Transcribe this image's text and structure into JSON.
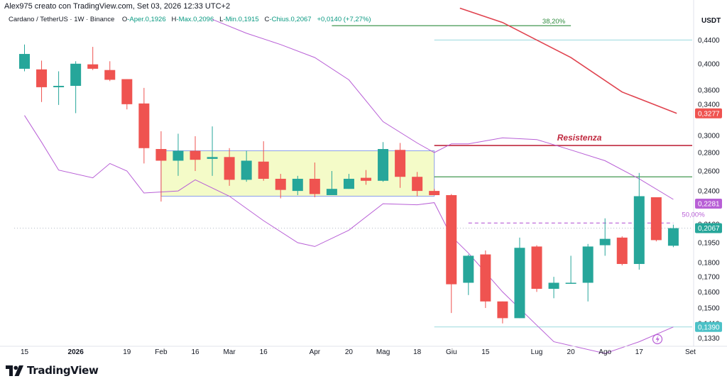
{
  "header": {
    "text": "Alex975 creato con TradingView.com, Set 03, 2026 12:33 UTC+2"
  },
  "symbol_line": {
    "name": "Cardano / TetherUS · 1W · Binance",
    "open_label": "O",
    "open": "-Aper.0,1926",
    "high_label": "H",
    "high": "-Max.0,2096",
    "low_label": "L",
    "low": "-Min.0,1915",
    "close_label": "C",
    "close": "-Chius.0,2067",
    "change": "+0,0140 (+7,27%)"
  },
  "brand": {
    "name": "TradingView",
    "icon": "tradingview-logo-icon"
  },
  "colors": {
    "up": "#26a69a",
    "down": "#ef5350",
    "band": "#b85fd6",
    "resistance": "#c0293f",
    "green_line": "#2e8b3d",
    "cyan_line": "#9ad9dd",
    "downtrend": "#e0434f",
    "range_fill": "#f4fbc8",
    "range_border": "#8ea0e8"
  },
  "chart_data": {
    "type": "candlestick",
    "title": "Cardano / TetherUS · 1W · Binance",
    "currency_label": "USDT",
    "y_scale": "log",
    "ylim": [
      0.129,
      0.505
    ],
    "y_ticks": [
      {
        "value": 0.44,
        "label": "0,4400"
      },
      {
        "value": 0.4,
        "label": "0,4000"
      },
      {
        "value": 0.36,
        "label": "0,3600"
      },
      {
        "value": 0.34,
        "label": "0,3400"
      },
      {
        "value": 0.3,
        "label": "0,3000"
      },
      {
        "value": 0.28,
        "label": "0,2800"
      },
      {
        "value": 0.26,
        "label": "0,2600"
      },
      {
        "value": 0.24,
        "label": "0,2400"
      },
      {
        "value": 0.21,
        "label": "0,2100"
      },
      {
        "value": 0.195,
        "label": "0,1950"
      },
      {
        "value": 0.18,
        "label": "0,1800"
      },
      {
        "value": 0.17,
        "label": "0,1700"
      },
      {
        "value": 0.16,
        "label": "0,1600"
      },
      {
        "value": 0.15,
        "label": "0,1500"
      },
      {
        "value": 0.141,
        "label": "0,1410"
      },
      {
        "value": 0.133,
        "label": "0,1330"
      }
    ],
    "x_ticks": [
      {
        "label": "15",
        "index": 0
      },
      {
        "label": "2026",
        "index": 3,
        "bold": true
      },
      {
        "label": "19",
        "index": 6
      },
      {
        "label": "Feb",
        "index": 8
      },
      {
        "label": "16",
        "index": 10
      },
      {
        "label": "Mar",
        "index": 12
      },
      {
        "label": "16",
        "index": 14
      },
      {
        "label": "Apr",
        "index": 17
      },
      {
        "label": "20",
        "index": 19
      },
      {
        "label": "Mag",
        "index": 21
      },
      {
        "label": "18",
        "index": 23
      },
      {
        "label": "Giu",
        "index": 25
      },
      {
        "label": "15",
        "index": 27
      },
      {
        "label": "Lug",
        "index": 30
      },
      {
        "label": "20",
        "index": 32
      },
      {
        "label": "Ago",
        "index": 34
      },
      {
        "label": "17",
        "index": 36
      },
      {
        "label": "Set",
        "index": 39
      }
    ],
    "candles": [
      {
        "o": 0.392,
        "h": 0.432,
        "l": 0.388,
        "c": 0.416
      },
      {
        "o": 0.391,
        "h": 0.405,
        "l": 0.343,
        "c": 0.364
      },
      {
        "o": 0.364,
        "h": 0.388,
        "l": 0.339,
        "c": 0.366
      },
      {
        "o": 0.366,
        "h": 0.404,
        "l": 0.328,
        "c": 0.4
      },
      {
        "o": 0.399,
        "h": 0.428,
        "l": 0.39,
        "c": 0.392
      },
      {
        "o": 0.39,
        "h": 0.404,
        "l": 0.373,
        "c": 0.375
      },
      {
        "o": 0.376,
        "h": 0.376,
        "l": 0.333,
        "c": 0.34
      },
      {
        "o": 0.341,
        "h": 0.363,
        "l": 0.268,
        "c": 0.285
      },
      {
        "o": 0.284,
        "h": 0.305,
        "l": 0.23,
        "c": 0.271
      },
      {
        "o": 0.271,
        "h": 0.302,
        "l": 0.255,
        "c": 0.282
      },
      {
        "o": 0.282,
        "h": 0.299,
        "l": 0.26,
        "c": 0.272
      },
      {
        "o": 0.273,
        "h": 0.311,
        "l": 0.255,
        "c": 0.275
      },
      {
        "o": 0.275,
        "h": 0.285,
        "l": 0.245,
        "c": 0.251
      },
      {
        "o": 0.251,
        "h": 0.282,
        "l": 0.249,
        "c": 0.271
      },
      {
        "o": 0.27,
        "h": 0.293,
        "l": 0.25,
        "c": 0.252
      },
      {
        "o": 0.252,
        "h": 0.257,
        "l": 0.233,
        "c": 0.241
      },
      {
        "o": 0.24,
        "h": 0.255,
        "l": 0.236,
        "c": 0.252
      },
      {
        "o": 0.252,
        "h": 0.269,
        "l": 0.234,
        "c": 0.237
      },
      {
        "o": 0.236,
        "h": 0.26,
        "l": 0.236,
        "c": 0.242
      },
      {
        "o": 0.242,
        "h": 0.257,
        "l": 0.242,
        "c": 0.252
      },
      {
        "o": 0.253,
        "h": 0.261,
        "l": 0.246,
        "c": 0.25
      },
      {
        "o": 0.25,
        "h": 0.292,
        "l": 0.249,
        "c": 0.284
      },
      {
        "o": 0.283,
        "h": 0.291,
        "l": 0.243,
        "c": 0.254
      },
      {
        "o": 0.254,
        "h": 0.259,
        "l": 0.235,
        "c": 0.24
      },
      {
        "o": 0.24,
        "h": 0.242,
        "l": 0.236,
        "c": 0.236
      },
      {
        "o": 0.236,
        "h": 0.237,
        "l": 0.147,
        "c": 0.165
      },
      {
        "o": 0.166,
        "h": 0.186,
        "l": 0.158,
        "c": 0.185
      },
      {
        "o": 0.186,
        "h": 0.189,
        "l": 0.15,
        "c": 0.154
      },
      {
        "o": 0.154,
        "h": 0.154,
        "l": 0.141,
        "c": 0.144
      },
      {
        "o": 0.144,
        "h": 0.199,
        "l": 0.144,
        "c": 0.191
      },
      {
        "o": 0.192,
        "h": 0.193,
        "l": 0.16,
        "c": 0.162
      },
      {
        "o": 0.162,
        "h": 0.17,
        "l": 0.156,
        "c": 0.166
      },
      {
        "o": 0.166,
        "h": 0.185,
        "l": 0.166,
        "c": 0.166
      },
      {
        "o": 0.166,
        "h": 0.194,
        "l": 0.154,
        "c": 0.192
      },
      {
        "o": 0.193,
        "h": 0.215,
        "l": 0.185,
        "c": 0.198
      },
      {
        "o": 0.199,
        "h": 0.2,
        "l": 0.178,
        "c": 0.179
      },
      {
        "o": 0.179,
        "h": 0.258,
        "l": 0.175,
        "c": 0.235
      },
      {
        "o": 0.234,
        "h": 0.234,
        "l": 0.196,
        "c": 0.197
      },
      {
        "o": 0.1926,
        "h": 0.2096,
        "l": 0.1915,
        "c": 0.2067
      }
    ],
    "bollinger_upper": [
      [
        11,
        0.478
      ],
      [
        13,
        0.452
      ],
      [
        15,
        0.432
      ],
      [
        17,
        0.41
      ],
      [
        19,
        0.375
      ],
      [
        21,
        0.317
      ],
      [
        23,
        0.291
      ],
      [
        24,
        0.28
      ],
      [
        25,
        0.29
      ],
      [
        26,
        0.29
      ],
      [
        28,
        0.297
      ],
      [
        30,
        0.295
      ],
      [
        32,
        0.283
      ],
      [
        34,
        0.271
      ],
      [
        36,
        0.252
      ],
      [
        38,
        0.232
      ]
    ],
    "bollinger_lower": [
      [
        0,
        0.325
      ],
      [
        1,
        0.292
      ],
      [
        2,
        0.261
      ],
      [
        4,
        0.253
      ],
      [
        5,
        0.268
      ],
      [
        6,
        0.26
      ],
      [
        7,
        0.238
      ],
      [
        9,
        0.24
      ],
      [
        10,
        0.251
      ],
      [
        12,
        0.235
      ],
      [
        14,
        0.213
      ],
      [
        16,
        0.195
      ],
      [
        17,
        0.192
      ],
      [
        19,
        0.205
      ],
      [
        21,
        0.228
      ],
      [
        23,
        0.227
      ],
      [
        24,
        0.229
      ],
      [
        25,
        0.2
      ],
      [
        26,
        0.187
      ],
      [
        28,
        0.16
      ],
      [
        30,
        0.14
      ],
      [
        31,
        0.131
      ],
      [
        34,
        0.125
      ],
      [
        36,
        0.131
      ],
      [
        38,
        0.139
      ]
    ],
    "downtrend_line": [
      [
        25.5,
        0.5
      ],
      [
        28,
        0.472
      ],
      [
        30,
        0.44
      ],
      [
        32,
        0.41
      ],
      [
        35,
        0.357
      ],
      [
        38.2,
        0.3277
      ]
    ],
    "range_box": {
      "x0": 8.0,
      "x1": 24.0,
      "y0": 0.235,
      "y1": 0.282
    },
    "levels": [
      {
        "name": "resistance",
        "value": 0.288,
        "x0": 24.0,
        "x1": 40.0,
        "label": "Resistenza"
      },
      {
        "name": "green-level",
        "value": 0.254,
        "x0": 24.0,
        "x1": 40.0
      },
      {
        "name": "fib-382-level",
        "value": 0.466,
        "x0": 18.0,
        "x1": 32.0,
        "label": "38,20%"
      },
      {
        "name": "cyan-upper-level",
        "value": 0.44,
        "x0": 24.0,
        "x1": 40.0
      },
      {
        "name": "cyan-lower-level",
        "value": 0.139,
        "x0": 24.0,
        "x1": 40.0
      },
      {
        "name": "fib-50-level",
        "value": 0.211,
        "x0": 26.0,
        "x1": 38.0,
        "label": "50,00%"
      },
      {
        "name": "last-price-level",
        "value": 0.2067,
        "x0": -0.6,
        "x1": 40.0
      }
    ],
    "price_tags": [
      {
        "name": "tag-3277",
        "value": 0.3277,
        "label": "0,3277",
        "color": "#ef5350"
      },
      {
        "name": "tag-2281",
        "value": 0.2281,
        "label": "0,2281",
        "color": "#b85fd6"
      },
      {
        "name": "tag-2067",
        "value": 0.2067,
        "label": "0,2067",
        "color": "#26a69a"
      },
      {
        "name": "tag-1390",
        "value": 0.139,
        "label": "0,1390",
        "color": "#4cc1c7"
      }
    ]
  }
}
